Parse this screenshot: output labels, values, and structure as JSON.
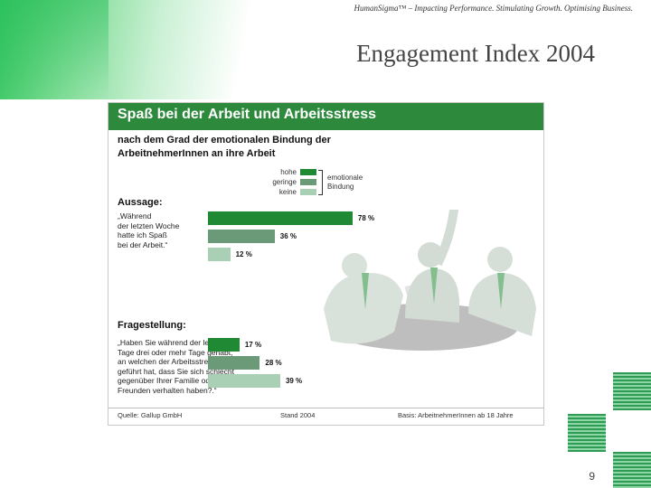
{
  "slide": {
    "tagline": "HumanSigma™ – Impacting Performance. Stimulating Growth. Optimising Business.",
    "title": "Engagement Index 2004",
    "page_number": "9"
  },
  "figure": {
    "title": "Spaß bei der Arbeit und Arbeitsstress",
    "subtitle": "nach dem Grad der emotionalen Bindung der ArbeitnehmerInnen an ihre Arbeit",
    "legend": {
      "items": [
        "hohe",
        "geringe",
        "keine"
      ],
      "group_label": "emotionale Bindung"
    },
    "sections": [
      {
        "label": "Aussage:",
        "statement": "„Während\nder letzten Woche\nhatte ich Spaß\nbei der Arbeit.“"
      },
      {
        "label": "Fragestellung:",
        "statement": "„Haben Sie während der letzten 30\nTage drei oder mehr Tage gehabt,\nan welchen der Arbeitsstress dazu\ngeführt hat, dass Sie sich schlecht\ngegenüber Ihrer Familie oder Ihren\nFreunden verhalten haben?.“"
      }
    ],
    "footer": {
      "source": "Quelle: Gallup GmbH",
      "date": "Stand 2004",
      "basis": "Basis: ArbeitnehmerInnen ab 18 Jahre"
    }
  },
  "colors": {
    "header": "#2d8a3c",
    "hohe": "#1f8a33",
    "geringe": "#6a9a78",
    "keine": "#a9d0b4"
  },
  "chart_data": {
    "type": "bar",
    "orientation": "horizontal",
    "title": "Spaß bei der Arbeit und Arbeitsstress",
    "subtitle": "nach dem Grad der emotionalen Bindung der ArbeitnehmerInnen an ihre Arbeit",
    "series_names": [
      "hohe",
      "geringe",
      "keine"
    ],
    "groups": [
      {
        "name": "Aussage",
        "values": [
          78,
          36,
          12
        ],
        "labels": [
          "78 %",
          "36 %",
          "12 %"
        ]
      },
      {
        "name": "Fragestellung",
        "values": [
          17,
          28,
          39
        ],
        "labels": [
          "17 %",
          "28 %",
          "39 %"
        ]
      }
    ],
    "unit": "%",
    "legend_position": "top-center"
  }
}
